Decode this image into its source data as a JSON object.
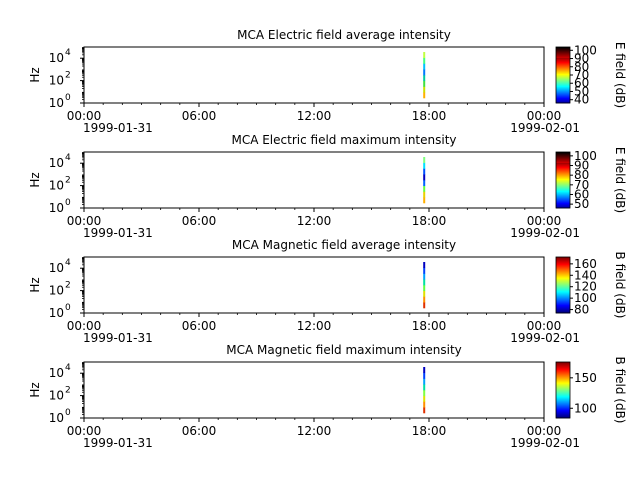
{
  "chart_data": [
    {
      "type": "heatmap",
      "title": "MCA  Electric field average intensity",
      "ylabel": "Hz",
      "y_ticks": [
        "10",
        "10",
        "10"
      ],
      "y_tick_exponents": [
        "0",
        "2",
        "4"
      ],
      "y_scale": "log",
      "ylim_hz": [
        1,
        100000
      ],
      "x_ticks": [
        "00:00",
        "06:00",
        "12:00",
        "18:00",
        "00:00"
      ],
      "x_date_start": "1999-01-31",
      "x_date_end": "1999-02-01",
      "xlim": [
        "1999-01-31 00:00",
        "1999-02-01 00:00"
      ],
      "data_time": "1999-01-31 17:45",
      "stripe_colors": [
        "#ffb000",
        "#c8e000",
        "#40e040",
        "#00c8a0",
        "#0078ff",
        "#00c0ff",
        "#40ff80",
        "#c0ff40"
      ],
      "colorbar": {
        "label": "E field (dB)",
        "ticks": [
          "100",
          "90",
          "80",
          "70",
          "60",
          "50",
          "40"
        ],
        "tick_values": [
          100,
          90,
          80,
          70,
          60,
          50,
          40
        ],
        "range": [
          36,
          104
        ],
        "colormap": "jet-black-top"
      }
    },
    {
      "type": "heatmap",
      "title": "MCA  Electric field maximum intensity",
      "ylabel": "Hz",
      "y_ticks": [
        "10",
        "10",
        "10"
      ],
      "y_tick_exponents": [
        "0",
        "2",
        "4"
      ],
      "y_scale": "log",
      "ylim_hz": [
        1,
        100000
      ],
      "x_ticks": [
        "00:00",
        "06:00",
        "12:00",
        "18:00",
        "00:00"
      ],
      "x_date_start": "1999-01-31",
      "x_date_end": "1999-02-01",
      "xlim": [
        "1999-01-31 00:00",
        "1999-02-01 00:00"
      ],
      "data_time": "1999-01-31 17:45",
      "stripe_colors": [
        "#ffb000",
        "#e8d000",
        "#60ff40",
        "#0060ff",
        "#0000c0",
        "#0050ff",
        "#00e0ff",
        "#80ff80"
      ],
      "colorbar": {
        "label": "E field (dB)",
        "ticks": [
          "100",
          "90",
          "80",
          "70",
          "60",
          "50"
        ],
        "tick_values": [
          100,
          90,
          80,
          70,
          60,
          50
        ],
        "range": [
          46,
          104
        ],
        "colormap": "jet-black-top"
      }
    },
    {
      "type": "heatmap",
      "title": "MCA  Magnetic field average intensity",
      "ylabel": "Hz",
      "y_ticks": [
        "10",
        "10",
        "10"
      ],
      "y_tick_exponents": [
        "0",
        "2",
        "4"
      ],
      "y_scale": "log",
      "ylim_hz": [
        1,
        100000
      ],
      "x_ticks": [
        "00:00",
        "06:00",
        "12:00",
        "18:00",
        "00:00"
      ],
      "x_date_start": "1999-01-31",
      "x_date_end": "1999-02-01",
      "xlim": [
        "1999-01-31 00:00",
        "1999-02-01 00:00"
      ],
      "data_time": "1999-01-31 17:45",
      "stripe_colors": [
        "#e03000",
        "#ff9000",
        "#e0e000",
        "#60ff40",
        "#00e0a0",
        "#00a0ff",
        "#0040ff",
        "#0000c0"
      ],
      "colorbar": {
        "label": "B field (dB)",
        "ticks": [
          "160",
          "140",
          "120",
          "100",
          "80"
        ],
        "tick_values": [
          160,
          140,
          120,
          100,
          80
        ],
        "range": [
          74,
          172
        ],
        "colormap": "jet"
      }
    },
    {
      "type": "heatmap",
      "title": "MCA  Magnetic field maximum intensity",
      "ylabel": "Hz",
      "y_ticks": [
        "10",
        "10",
        "10"
      ],
      "y_tick_exponents": [
        "0",
        "2",
        "4"
      ],
      "y_scale": "log",
      "ylim_hz": [
        1,
        100000
      ],
      "x_ticks": [
        "00:00",
        "06:00",
        "12:00",
        "18:00",
        "00:00"
      ],
      "x_date_start": "1999-01-31",
      "x_date_end": "1999-02-01",
      "xlim": [
        "1999-01-31 00:00",
        "1999-02-01 00:00"
      ],
      "data_time": "1999-01-31 17:45",
      "stripe_colors": [
        "#e03000",
        "#ff9000",
        "#e0e000",
        "#80ff40",
        "#00e0a0",
        "#00a0ff",
        "#0040ff",
        "#0000c0"
      ],
      "colorbar": {
        "label": "B field (dB)",
        "ticks": [
          "150",
          "100"
        ],
        "tick_values": [
          150,
          100
        ],
        "range": [
          84,
          176
        ],
        "colormap": "jet"
      }
    }
  ]
}
